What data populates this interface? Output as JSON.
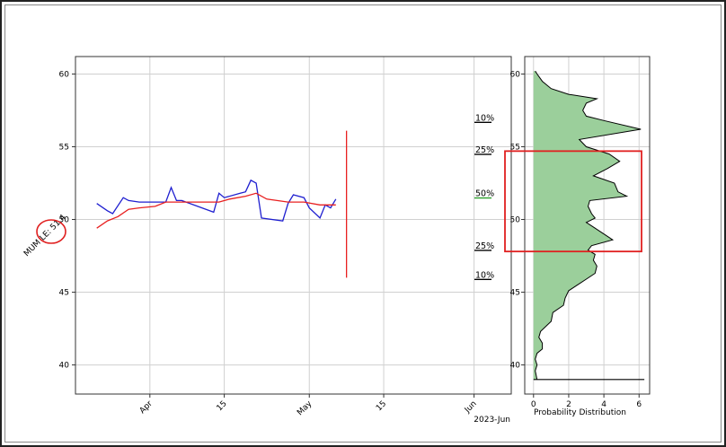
{
  "chart_data": [
    {
      "type": "line",
      "ylim": [
        38,
        61.2
      ],
      "yticks": [
        40,
        45,
        50,
        55,
        60
      ],
      "ytick_labels": [
        "40",
        "45",
        "50",
        "55",
        "60"
      ],
      "x_range": [
        "2023-03-18",
        "2023-06-08"
      ],
      "xticks": [
        "2023-04-01",
        "2023-04-15",
        "2023-05-01",
        "2023-05-15",
        "2023-06-01"
      ],
      "xtick_labels": [
        "Apr",
        "15",
        "May",
        "15",
        "Jun"
      ],
      "x_offset_label": "2023-Jun",
      "y_annotation": "MUM LE: 51.4",
      "series": [
        {
          "color": "#1f1fd0",
          "points": [
            [
              "2023-03-22",
              51.1
            ],
            [
              "2023-03-24",
              50.6
            ],
            [
              "2023-03-25",
              50.4
            ],
            [
              "2023-03-27",
              51.5
            ],
            [
              "2023-03-28",
              51.3
            ],
            [
              "2023-03-30",
              51.2
            ],
            [
              "2023-04-04",
              51.2
            ],
            [
              "2023-04-05",
              52.2
            ],
            [
              "2023-04-06",
              51.3
            ],
            [
              "2023-04-07",
              51.3
            ],
            [
              "2023-04-13",
              50.5
            ],
            [
              "2023-04-14",
              51.8
            ],
            [
              "2023-04-15",
              51.5
            ],
            [
              "2023-04-18",
              51.8
            ],
            [
              "2023-04-19",
              51.9
            ],
            [
              "2023-04-20",
              52.7
            ],
            [
              "2023-04-21",
              52.5
            ],
            [
              "2023-04-22",
              50.1
            ],
            [
              "2023-04-26",
              49.9
            ],
            [
              "2023-04-27",
              51.1
            ],
            [
              "2023-04-28",
              51.7
            ],
            [
              "2023-04-30",
              51.5
            ],
            [
              "2023-05-01",
              50.8
            ],
            [
              "2023-05-03",
              50.1
            ],
            [
              "2023-05-04",
              51.0
            ],
            [
              "2023-05-05",
              50.8
            ],
            [
              "2023-05-06",
              51.4
            ]
          ]
        },
        {
          "color": "#e82020",
          "points": [
            [
              "2023-03-22",
              49.4
            ],
            [
              "2023-03-24",
              49.9
            ],
            [
              "2023-03-26",
              50.2
            ],
            [
              "2023-03-28",
              50.7
            ],
            [
              "2023-03-30",
              50.8
            ],
            [
              "2023-04-02",
              50.9
            ],
            [
              "2023-04-04",
              51.2
            ],
            [
              "2023-04-07",
              51.2
            ],
            [
              "2023-04-10",
              51.2
            ],
            [
              "2023-04-14",
              51.2
            ],
            [
              "2023-04-16",
              51.4
            ],
            [
              "2023-04-19",
              51.6
            ],
            [
              "2023-04-21",
              51.8
            ],
            [
              "2023-04-23",
              51.4
            ],
            [
              "2023-04-27",
              51.2
            ],
            [
              "2023-04-30",
              51.2
            ],
            [
              "2023-05-03",
              51.0
            ],
            [
              "2023-05-06",
              51.0
            ]
          ]
        }
      ],
      "vertical_line": {
        "x": "2023-05-08",
        "y_from": 46.0,
        "y_to": 56.1,
        "color": "#e82020"
      },
      "percentile_labels": [
        {
          "label": "10%",
          "y": 56.8,
          "underline_color": "#000000"
        },
        {
          "label": "25%",
          "y": 54.6,
          "underline_color": "#000000"
        },
        {
          "label": "50%",
          "y": 51.6,
          "underline_color": "#2ca02c"
        },
        {
          "label": "25%",
          "y": 48.0,
          "underline_color": "#000000"
        },
        {
          "label": "10%",
          "y": 46.0,
          "underline_color": "#000000"
        }
      ]
    },
    {
      "type": "area",
      "orientation": "horizontal",
      "xlabel": "Probability Distribution",
      "xlim": [
        -0.5,
        6.6
      ],
      "xticks": [
        0,
        2,
        4,
        6
      ],
      "xtick_labels": [
        "0",
        "2",
        "4",
        "6"
      ],
      "ylim": [
        38,
        61.2
      ],
      "yticks": [
        40,
        45,
        50,
        55,
        60
      ],
      "ytick_labels": [
        "40",
        "45",
        "50",
        "55",
        "60"
      ],
      "fill_color": "#9bcf9b",
      "edge_color": "#000000",
      "profile": [
        [
          39,
          0.2
        ],
        [
          39.6,
          0.1
        ],
        [
          40,
          0.2
        ],
        [
          40.4,
          0.1
        ],
        [
          40.8,
          0.2
        ],
        [
          41.1,
          0.5
        ],
        [
          41.5,
          0.5
        ],
        [
          41.9,
          0.3
        ],
        [
          42.3,
          0.4
        ],
        [
          43.0,
          1.0
        ],
        [
          43.6,
          1.1
        ],
        [
          44.1,
          1.7
        ],
        [
          44.6,
          1.8
        ],
        [
          45.1,
          2.0
        ],
        [
          45.5,
          2.5
        ],
        [
          45.9,
          3.0
        ],
        [
          46.3,
          3.5
        ],
        [
          46.8,
          3.6
        ],
        [
          47.2,
          3.4
        ],
        [
          47.6,
          3.5
        ],
        [
          47.9,
          3.1
        ],
        [
          48.2,
          3.3
        ],
        [
          48.6,
          4.5
        ],
        [
          49.0,
          4.0
        ],
        [
          49.4,
          3.5
        ],
        [
          49.8,
          3.0
        ],
        [
          50.1,
          3.5
        ],
        [
          50.4,
          3.3
        ],
        [
          50.9,
          3.1
        ],
        [
          51.3,
          3.2
        ],
        [
          51.6,
          5.3
        ],
        [
          51.9,
          4.8
        ],
        [
          52.5,
          4.6
        ],
        [
          53.0,
          3.4
        ],
        [
          53.5,
          4.2
        ],
        [
          54.0,
          4.9
        ],
        [
          54.5,
          4.3
        ],
        [
          55.0,
          3.0
        ],
        [
          55.5,
          2.6
        ],
        [
          56.2,
          6.1
        ],
        [
          56.8,
          4.0
        ],
        [
          57.1,
          3.0
        ],
        [
          57.5,
          2.8
        ],
        [
          58.0,
          3.0
        ],
        [
          58.3,
          3.6
        ],
        [
          58.6,
          2.0
        ],
        [
          59.0,
          1.0
        ],
        [
          59.5,
          0.5
        ],
        [
          60.0,
          0.2
        ],
        [
          60.2,
          0.1
        ]
      ],
      "baseline_y": 39.0,
      "highlight_box": {
        "y_from": 47.8,
        "y_to": 54.7,
        "color": "#e02020"
      }
    }
  ]
}
